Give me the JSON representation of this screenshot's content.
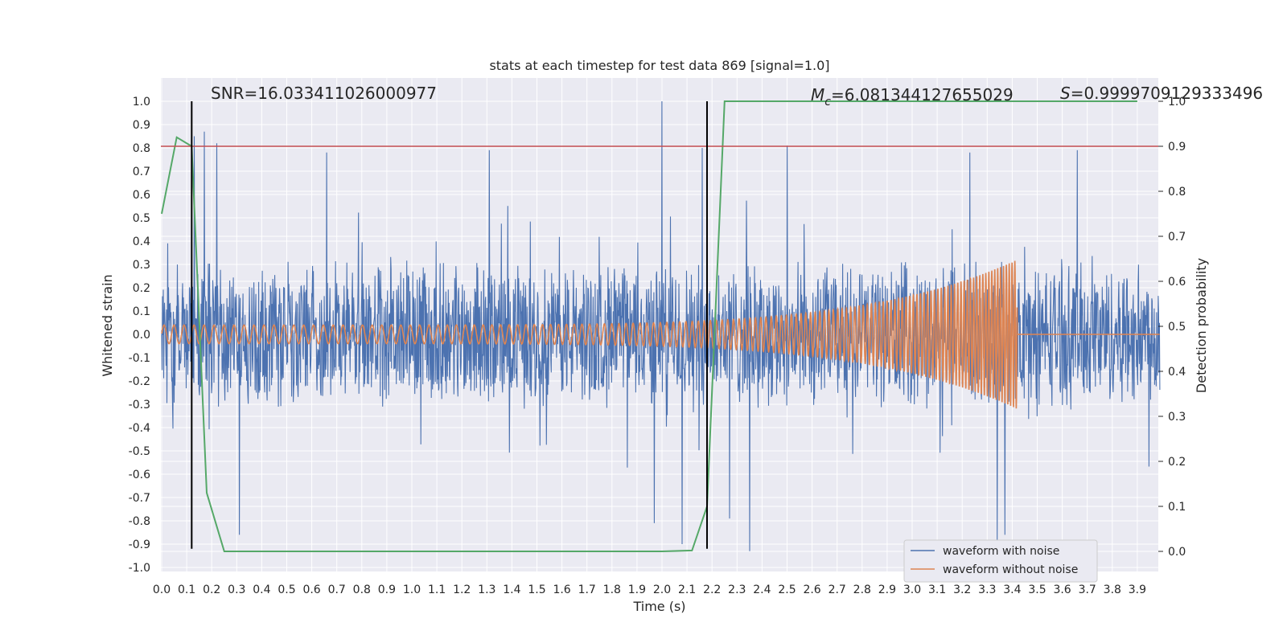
{
  "chart_data": {
    "type": "line",
    "title": "stats at each timestep for test data 869 [signal=1.0]",
    "xlabel": "Time (s)",
    "ylabel": "Whitened strain",
    "y2label": "Detection probability",
    "xlim": [
      0.0,
      3.99
    ],
    "ylim": [
      -1.03,
      1.05
    ],
    "y2lim": [
      -0.05,
      1.0
    ],
    "xticks": [
      "0.0",
      "0.1",
      "0.2",
      "0.3",
      "0.4",
      "0.5",
      "0.6",
      "0.7",
      "0.8",
      "0.9",
      "1.0",
      "1.1",
      "1.2",
      "1.3",
      "1.4",
      "1.5",
      "1.6",
      "1.7",
      "1.8",
      "1.9",
      "2.0",
      "2.1",
      "2.2",
      "2.3",
      "2.4",
      "2.5",
      "2.6",
      "2.7",
      "2.8",
      "2.9",
      "3.0",
      "3.1",
      "3.2",
      "3.3",
      "3.4",
      "3.5",
      "3.6",
      "3.7",
      "3.8",
      "3.9"
    ],
    "yticks": [
      "1.0",
      "0.9",
      "0.8",
      "0.7",
      "0.6",
      "0.5",
      "0.4",
      "0.3",
      "0.2",
      "0.1",
      "0.0",
      "-0.1",
      "-0.2",
      "-0.3",
      "-0.4",
      "-0.5",
      "-0.6",
      "-0.7",
      "-0.8",
      "-0.9",
      "-1.0"
    ],
    "y2ticks": [
      "1.0",
      "0.9",
      "0.8",
      "0.7",
      "0.6",
      "0.5",
      "0.4",
      "0.3",
      "0.2",
      "0.1",
      "0.0"
    ],
    "grid": true,
    "legend_position": "bottom-right",
    "annotations": {
      "snr": "SNR=16.033411026000977",
      "mc_symbol": "M",
      "mc_sub": "c",
      "mc_value": "=6.081344127655029",
      "s_symbol": "S",
      "s_value": "=0.9999709129333496"
    },
    "threshold": {
      "axis": "right",
      "value": 0.9,
      "color": "#c44e52"
    },
    "vertical_markers": {
      "x": [
        0.12,
        2.18
      ],
      "color": "#000000"
    },
    "series": [
      {
        "name": "waveform with noise",
        "color": "#4c72b0",
        "axis": "left",
        "envelope_abs": 0.33,
        "peaks": [
          [
            0.17,
            0.87
          ],
          [
            0.13,
            0.85
          ],
          [
            2.0,
            1.0
          ],
          [
            2.08,
            -0.9
          ],
          [
            0.31,
            -0.86
          ],
          [
            2.5,
            0.81
          ],
          [
            3.34,
            -0.9
          ],
          [
            3.37,
            -0.86
          ],
          [
            2.35,
            -0.93
          ],
          [
            2.27,
            -0.79
          ],
          [
            0.22,
            0.82
          ],
          [
            0.66,
            0.78
          ],
          [
            1.31,
            0.79
          ],
          [
            3.66,
            0.79
          ],
          [
            3.23,
            0.78
          ],
          [
            1.97,
            -0.81
          ],
          [
            2.16,
            0.8
          ],
          [
            2.18,
            0.82
          ]
        ]
      },
      {
        "name": "waveform without noise",
        "color": "#dd8452",
        "axis": "left",
        "amplitude_start": 0.04,
        "amplitude_end": 0.32,
        "merger_time": 3.42,
        "freq_start": 25,
        "freq_end": 90
      },
      {
        "name": "detection probability",
        "color": "#55a868",
        "axis": "right",
        "x": [
          0.0,
          0.06,
          0.12,
          0.18,
          0.25,
          0.31,
          0.5,
          1.0,
          1.5,
          2.0,
          2.12,
          2.18,
          2.25,
          2.3,
          2.5,
          3.0,
          3.5,
          3.9
        ],
        "y": [
          0.75,
          0.92,
          0.9,
          0.13,
          0.0,
          0.0,
          0.0,
          0.0,
          0.0,
          0.0,
          0.002,
          0.1,
          1.0,
          1.0,
          1.0,
          1.0,
          1.0,
          1.0
        ]
      }
    ]
  }
}
